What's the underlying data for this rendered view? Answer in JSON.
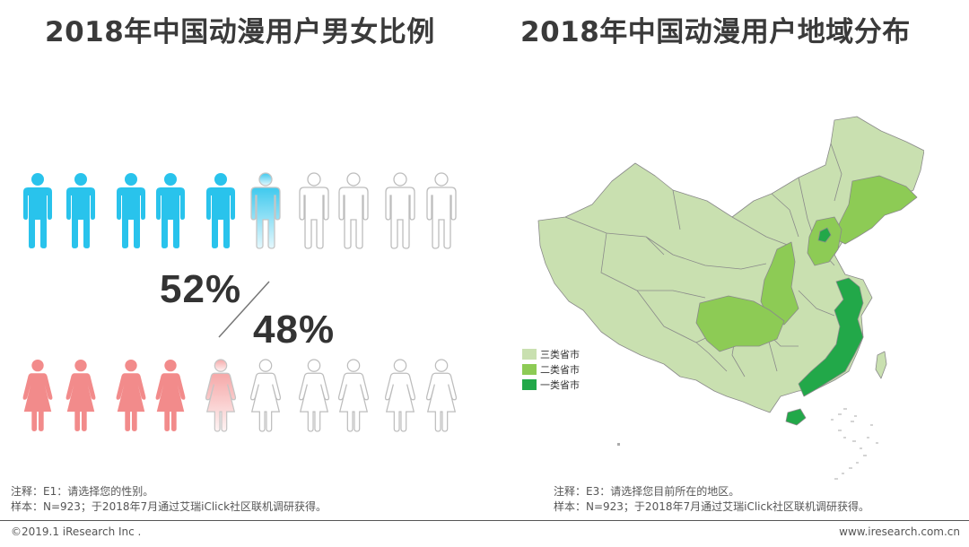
{
  "chart_data": [
    {
      "type": "pictogram",
      "title": "2018年中国动漫用户男女比例",
      "series": [
        {
          "name": "男",
          "value": 52,
          "label": "52%"
        },
        {
          "name": "女",
          "value": 48,
          "label": "48%"
        }
      ],
      "icons_per_row": 10,
      "note": "注释：E1：请选择您的性别。",
      "sample": "样本：N=923；于2018年7月通过艾瑞iClick社区联机调研获得。"
    },
    {
      "type": "map",
      "title": "2018年中国动漫用户地域分布",
      "legend": [
        {
          "label": "三类省市",
          "color": "#c9e0b0"
        },
        {
          "label": "二类省市",
          "color": "#8dcb55"
        },
        {
          "label": "一类省市",
          "color": "#22a849"
        }
      ],
      "note": "注释：E3：请选择您目前所在的地区。",
      "sample": "样本：N=923；于2018年7月通过艾瑞iClick社区联机调研获得。"
    }
  ],
  "colors": {
    "male": "#29c3ec",
    "female": "#f28b8b",
    "outline": "#bdbdbd",
    "tier3": "#c9e0b0",
    "tier2": "#8dcb55",
    "tier1": "#22a849"
  },
  "footer": {
    "copyright": "©2019.1 iResearch Inc .",
    "website": "www.iresearch.com.cn"
  }
}
